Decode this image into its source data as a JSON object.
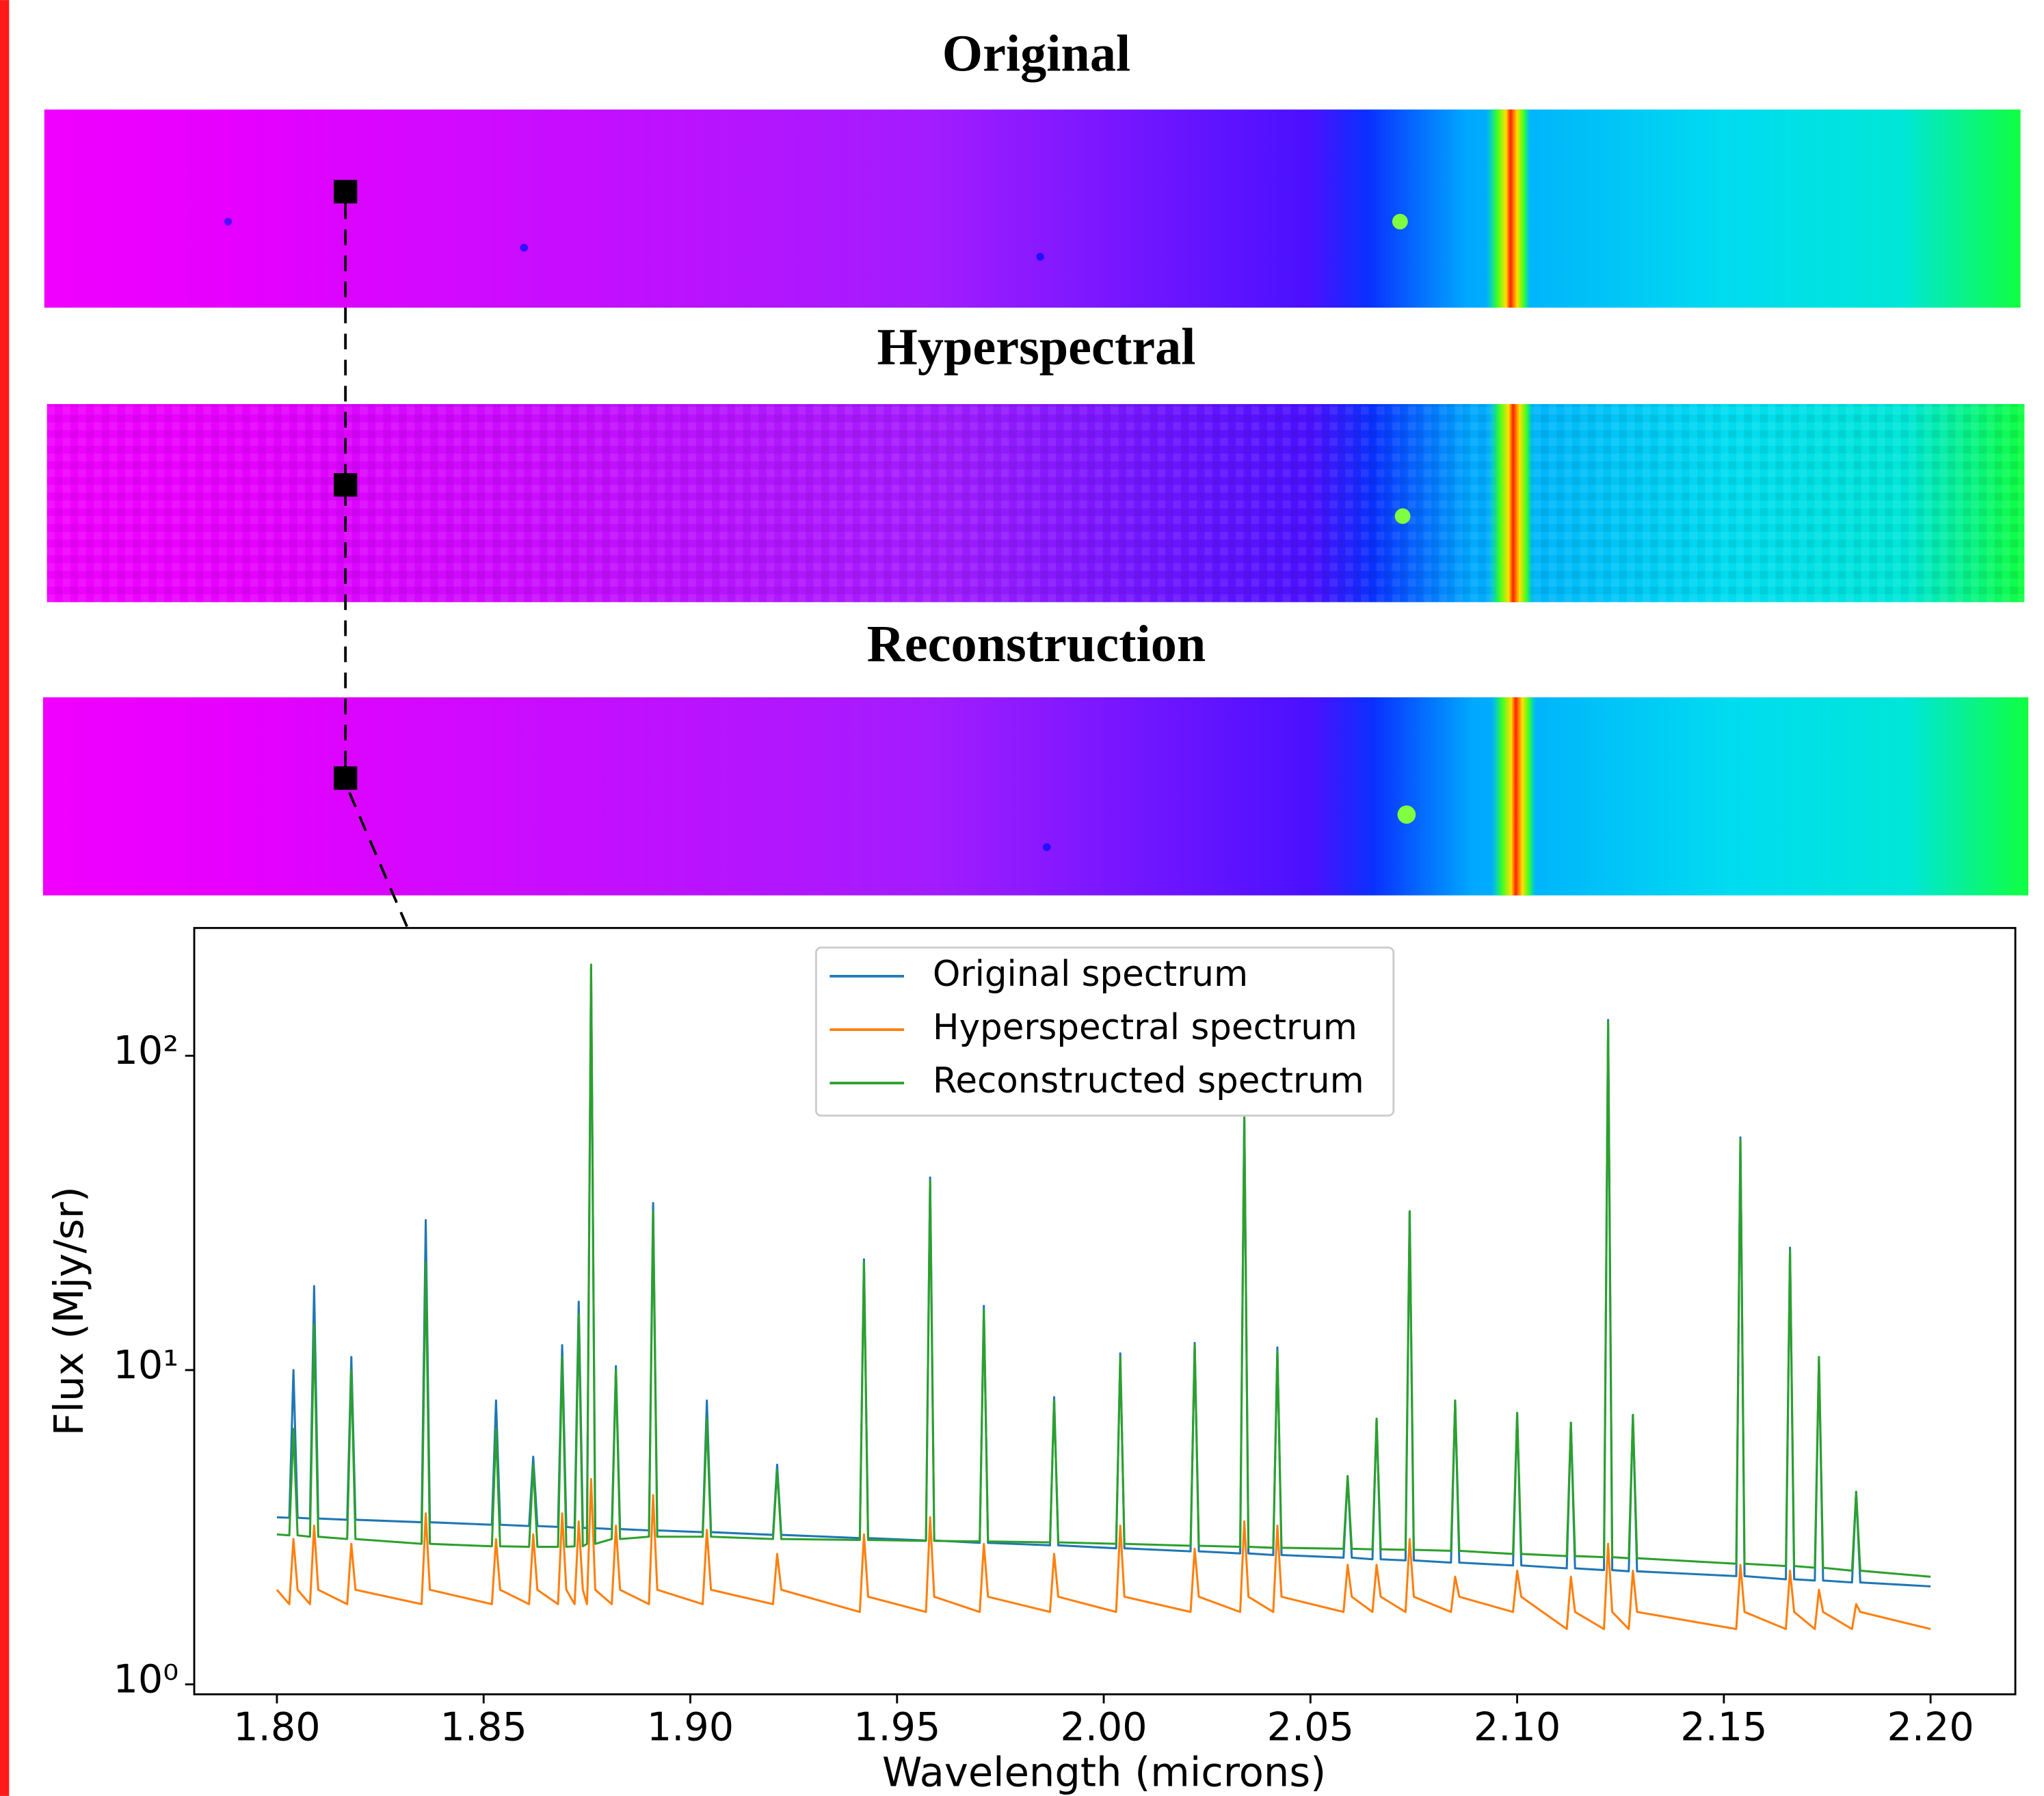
{
  "panels": [
    {
      "title": "Original"
    },
    {
      "title": "Hyperspectral"
    },
    {
      "title": "Reconstruction"
    }
  ],
  "chart_data": {
    "type": "line",
    "xlabel": "Wavelength (microns)",
    "ylabel": "Flux (Mjy/sr)",
    "log_y": true,
    "legend": "upper center",
    "xlim": [
      1.78,
      2.2205
    ],
    "ylim": [
      0.93,
      255
    ],
    "xticks": [
      {
        "value": 1.8,
        "label": "1.80"
      },
      {
        "value": 1.85,
        "label": "1.85"
      },
      {
        "value": 1.9,
        "label": "1.90"
      },
      {
        "value": 1.95,
        "label": "1.95"
      },
      {
        "value": 2.0,
        "label": "2.00"
      },
      {
        "value": 2.05,
        "label": "2.05"
      },
      {
        "value": 2.1,
        "label": "2.10"
      },
      {
        "value": 2.15,
        "label": "2.15"
      },
      {
        "value": 2.2,
        "label": "2.20"
      }
    ],
    "yticks": [
      {
        "value": 1,
        "label": "10⁰"
      },
      {
        "value": 10,
        "label": "10¹"
      },
      {
        "value": 100,
        "label": "10²"
      }
    ],
    "x": [
      1.8,
      1.803,
      1.804,
      1.805,
      1.808,
      1.809,
      1.81,
      1.817,
      1.818,
      1.819,
      1.835,
      1.836,
      1.837,
      1.852,
      1.853,
      1.854,
      1.861,
      1.862,
      1.863,
      1.868,
      1.869,
      1.87,
      1.872,
      1.873,
      1.874,
      1.875,
      1.876,
      1.877,
      1.881,
      1.882,
      1.883,
      1.89,
      1.891,
      1.892,
      1.903,
      1.904,
      1.905,
      1.92,
      1.921,
      1.922,
      1.941,
      1.942,
      1.943,
      1.957,
      1.958,
      1.959,
      1.97,
      1.971,
      1.972,
      1.987,
      1.988,
      1.989,
      2.003,
      2.004,
      2.005,
      2.021,
      2.022,
      2.023,
      2.033,
      2.034,
      2.035,
      2.041,
      2.042,
      2.043,
      2.058,
      2.059,
      2.06,
      2.065,
      2.066,
      2.067,
      2.073,
      2.074,
      2.075,
      2.084,
      2.085,
      2.086,
      2.099,
      2.1,
      2.101,
      2.112,
      2.113,
      2.114,
      2.121,
      2.122,
      2.123,
      2.127,
      2.128,
      2.129,
      2.153,
      2.154,
      2.155,
      2.165,
      2.166,
      2.167,
      2.172,
      2.173,
      2.174,
      2.181,
      2.182,
      2.183,
      2.2
    ],
    "series": [
      {
        "name": "Original spectrum",
        "color": "#1f77b4",
        "values": [
          3.4,
          3.39,
          10,
          3.39,
          3.37,
          18.5,
          3.37,
          3.34,
          11,
          3.34,
          3.28,
          30,
          3.28,
          3.22,
          8,
          3.22,
          3.19,
          5.3,
          3.19,
          3.17,
          12,
          3.17,
          3.15,
          16.5,
          3.15,
          3.14,
          190,
          3.14,
          3.12,
          10.3,
          3.12,
          3.09,
          34,
          3.09,
          3.05,
          8,
          3.05,
          2.99,
          5,
          2.99,
          2.92,
          22.5,
          2.92,
          2.87,
          41,
          2.87,
          2.82,
          16,
          2.82,
          2.77,
          8.2,
          2.77,
          2.71,
          11.3,
          2.71,
          2.65,
          12.2,
          2.65,
          2.61,
          65,
          2.61,
          2.58,
          11.8,
          2.58,
          2.53,
          4.6,
          2.53,
          2.5,
          7,
          2.5,
          2.48,
          32,
          2.48,
          2.44,
          8,
          2.44,
          2.39,
          7.3,
          2.39,
          2.34,
          6.8,
          2.34,
          2.31,
          130,
          2.31,
          2.29,
          7.2,
          2.29,
          2.21,
          55,
          2.21,
          2.16,
          24.5,
          2.16,
          2.14,
          11,
          2.14,
          2.11,
          4.1,
          2.11,
          2.05
        ]
      },
      {
        "name": "Hyperspectral spectrum",
        "color": "#ff7f0e",
        "values": [
          2.0,
          1.8,
          2.9,
          2.0,
          1.8,
          3.2,
          2.0,
          1.8,
          2.8,
          2.0,
          1.8,
          3.5,
          2.0,
          1.8,
          2.9,
          2.0,
          1.8,
          3.0,
          2.0,
          1.8,
          3.5,
          2.0,
          1.8,
          3.3,
          2.0,
          1.8,
          4.5,
          2.0,
          1.8,
          3.2,
          2.0,
          1.8,
          4.0,
          2.0,
          1.8,
          3.1,
          2.0,
          1.8,
          2.6,
          2.0,
          1.7,
          3.0,
          1.9,
          1.7,
          3.4,
          1.9,
          1.7,
          2.8,
          1.9,
          1.7,
          2.6,
          1.9,
          1.7,
          3.2,
          1.9,
          1.7,
          2.7,
          1.9,
          1.7,
          3.3,
          1.9,
          1.7,
          3.2,
          1.9,
          1.7,
          2.4,
          1.9,
          1.7,
          2.4,
          1.9,
          1.7,
          2.9,
          1.9,
          1.7,
          2.2,
          1.9,
          1.7,
          2.3,
          1.9,
          1.5,
          2.2,
          1.7,
          1.5,
          2.8,
          1.7,
          1.5,
          2.3,
          1.7,
          1.5,
          2.4,
          1.7,
          1.5,
          2.3,
          1.7,
          1.5,
          2.0,
          1.7,
          1.5,
          1.8,
          1.7,
          1.5
        ]
      },
      {
        "name": "Reconstructed spectrum",
        "color": "#2ca02c",
        "values": [
          3.0,
          2.98,
          6.5,
          2.98,
          2.95,
          14,
          2.95,
          2.9,
          10,
          2.9,
          2.8,
          22,
          2.8,
          2.75,
          6.5,
          2.75,
          2.74,
          5,
          2.74,
          2.74,
          11,
          2.74,
          2.75,
          15,
          2.75,
          2.8,
          195,
          2.8,
          2.9,
          10,
          2.9,
          2.95,
          32,
          2.95,
          2.95,
          7,
          2.95,
          2.9,
          4.8,
          2.9,
          2.88,
          22,
          2.88,
          2.86,
          40,
          2.86,
          2.85,
          15.5,
          2.85,
          2.83,
          8,
          2.83,
          2.8,
          11,
          2.8,
          2.76,
          12,
          2.76,
          2.74,
          64,
          2.74,
          2.72,
          11.5,
          2.72,
          2.7,
          4.6,
          2.7,
          2.69,
          7,
          2.69,
          2.68,
          32,
          2.68,
          2.66,
          8,
          2.66,
          2.6,
          7.3,
          2.6,
          2.56,
          6.8,
          2.56,
          2.54,
          128,
          2.54,
          2.52,
          7.2,
          2.52,
          2.42,
          54,
          2.42,
          2.38,
          24,
          2.38,
          2.35,
          11,
          2.35,
          2.3,
          4.1,
          2.3,
          2.2
        ]
      }
    ]
  }
}
